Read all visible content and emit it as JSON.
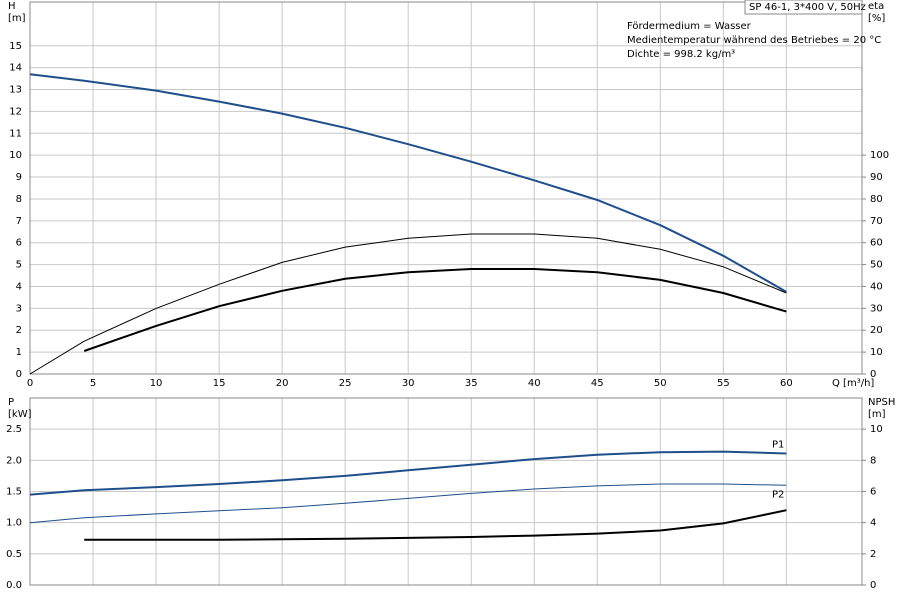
{
  "chart_data": [
    {
      "type": "line",
      "title": "SP 46-1, 3*400 V, 50Hz",
      "annotations": [
        "Fördermedium = Wasser",
        "Medientemperatur während des Betriebes = 20 °C",
        "Dichte = 998.2 kg/m³"
      ],
      "ylabel": "H",
      "yunit": "[m]",
      "y2label": "eta",
      "y2unit": "[%]",
      "xlabel": "Q [m³/h]",
      "x": [
        0,
        4.3,
        10,
        15,
        20,
        25,
        30,
        35,
        40,
        45,
        50,
        55,
        60
      ],
      "xlim": [
        0,
        66
      ],
      "xticks": [
        0,
        5,
        10,
        15,
        20,
        25,
        30,
        35,
        40,
        45,
        50,
        55,
        60
      ],
      "ylim": [
        0,
        17
      ],
      "yticks": [
        0,
        1,
        2,
        3,
        4,
        5,
        6,
        7,
        8,
        9,
        10,
        11,
        12,
        13,
        14,
        15
      ],
      "y2lim": [
        0,
        170
      ],
      "y2ticks": [
        0,
        10,
        20,
        30,
        40,
        50,
        60,
        70,
        80,
        90,
        100
      ],
      "grid": true,
      "series": [
        {
          "color": "#1f4e8c",
          "line_width": 2,
          "values": [
            13.7,
            13.4,
            12.95,
            12.45,
            11.9,
            11.25,
            10.5,
            9.7,
            8.85,
            7.95,
            6.8,
            5.4,
            3.75
          ]
        },
        {
          "color": "#000000",
          "line_width": 1,
          "axis": "y2",
          "values": [
            0,
            15,
            30,
            41,
            51,
            58,
            62,
            64,
            64,
            62,
            57,
            49,
            37
          ]
        },
        {
          "color": "#000000",
          "line_width": 2,
          "axis": "y2",
          "values": [
            null,
            10.5,
            22,
            31,
            38,
            43.5,
            46.5,
            48,
            48,
            46.5,
            43,
            37,
            28.5
          ]
        }
      ]
    },
    {
      "type": "line",
      "ylabel": "P",
      "yunit": "[kW]",
      "y2label": "NPSH",
      "y2unit": "[m]",
      "x": [
        0,
        4.3,
        10,
        15,
        20,
        25,
        30,
        35,
        40,
        45,
        50,
        55,
        60
      ],
      "xlim": [
        0,
        66
      ],
      "ylim": [
        0,
        3
      ],
      "yticks": [
        {
          "value": 0,
          "label": "0.0"
        },
        0.5,
        {
          "value": 1,
          "label": "1.0"
        },
        1.5,
        {
          "value": 2,
          "label": "2.0"
        },
        2.5
      ],
      "y2lim": [
        0,
        12
      ],
      "y2ticks": [
        0,
        2,
        4,
        6,
        8,
        10
      ],
      "grid": true,
      "series": [
        {
          "name": "P1",
          "label_position": "above",
          "color": "#1f4e8c",
          "line_width": 2,
          "values": [
            1.45,
            1.52,
            1.57,
            1.62,
            1.68,
            1.75,
            1.84,
            1.93,
            2.02,
            2.09,
            2.13,
            2.14,
            2.11
          ]
        },
        {
          "name": "P2",
          "label_position": "below",
          "color": "#1f4e8c",
          "line_width": 1,
          "values": [
            1.0,
            1.08,
            1.14,
            1.19,
            1.24,
            1.31,
            1.39,
            1.47,
            1.54,
            1.59,
            1.62,
            1.62,
            1.6
          ]
        },
        {
          "color": "#000000",
          "line_width": 2,
          "axis": "y2",
          "values": [
            null,
            2.9,
            2.9,
            2.9,
            2.93,
            2.97,
            3.02,
            3.08,
            3.17,
            3.3,
            3.5,
            3.95,
            4.8
          ]
        }
      ]
    }
  ]
}
